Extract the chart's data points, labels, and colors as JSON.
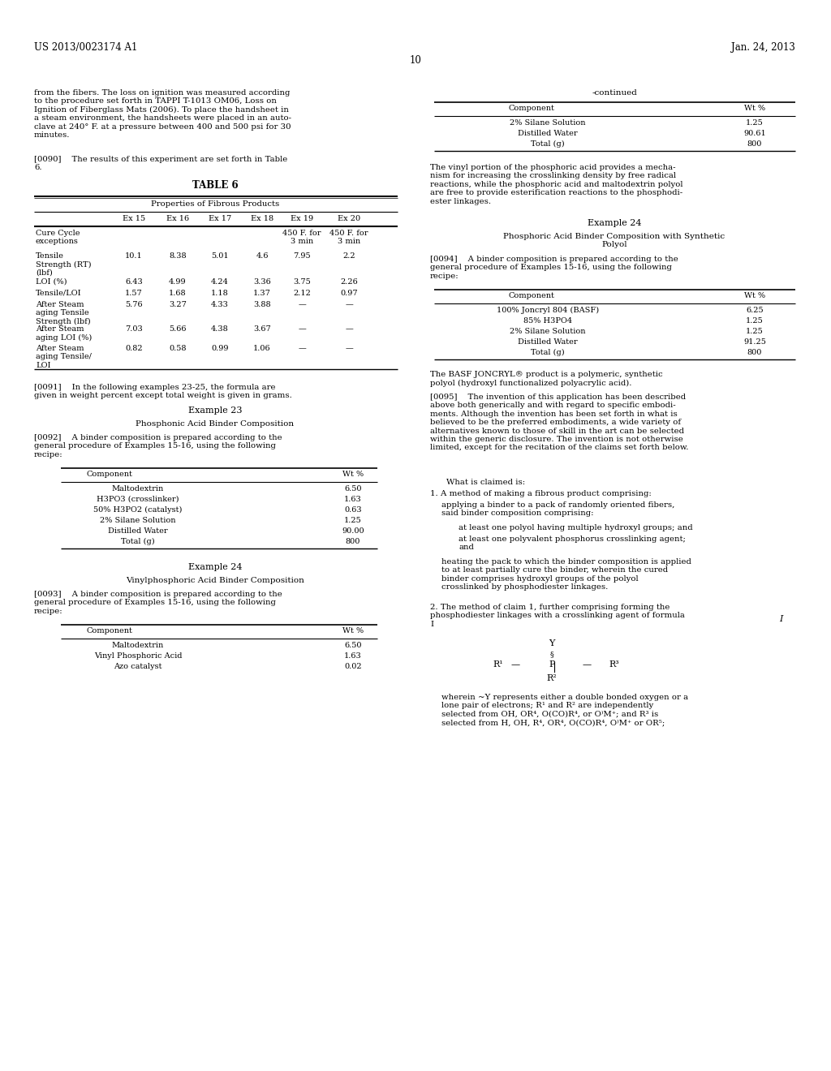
{
  "page_header_left": "US 2013/0023174 A1",
  "page_header_right": "Jan. 24, 2013",
  "page_number": "10",
  "bg_color": "#ffffff",
  "left_top_text": "from the fibers. The loss on ignition was measured according\nto the procedure set forth in TAPPI T-1013 OM06, Loss on\nIgnition of Fiberglass Mats (2006). To place the handsheet in\na steam environment, the handsheets were placed in an auto-\nclave at 240° F. at a pressure between 400 and 500 psi for 30\nminutes.",
  "left_para0090": "[0090]    The results of this experiment are set forth in Table\n6.",
  "table6_title": "TABLE 6",
  "table6_subtitle": "Properties of Fibrous Products",
  "table6_cols": [
    "",
    "Ex 15",
    "Ex 16",
    "Ex 17",
    "Ex 18",
    "Ex 19",
    "Ex 20"
  ],
  "table6_rows": [
    [
      "Cure Cycle\nexceptions",
      "",
      "",
      "",
      "",
      "450 F. for\n3 min",
      "450 F. for\n3 min"
    ],
    [
      "Tensile\nStrength (RT)\n(lbf)",
      "10.1",
      "8.38",
      "5.01",
      "4.6",
      "7.95",
      "2.2"
    ],
    [
      "LOI (%)",
      "6.43",
      "4.99",
      "4.24",
      "3.36",
      "3.75",
      "2.26"
    ],
    [
      "Tensile/LOI",
      "1.57",
      "1.68",
      "1.18",
      "1.37",
      "2.12",
      "0.97"
    ],
    [
      "After Steam\naging Tensile\nStrength (lbf)",
      "5.76",
      "3.27",
      "4.33",
      "3.88",
      "—",
      "—"
    ],
    [
      "After Steam\naging LOI (%)",
      "7.03",
      "5.66",
      "4.38",
      "3.67",
      "—",
      "—"
    ],
    [
      "After Steam\naging Tensile/\nLOI",
      "0.82",
      "0.58",
      "0.99",
      "1.06",
      "—",
      "—"
    ]
  ],
  "left_para0091": "[0091]    In the following examples 23-25, the formula are\ngiven in weight percent except total weight is given in grams.",
  "example23_title": "Example 23",
  "example23_subtitle": "Phosphonic Acid Binder Composition",
  "left_para0092": "[0092]    A binder composition is prepared according to the\ngeneral procedure of Examples 15-16, using the following\nrecipe:",
  "table_ex23_rows": [
    [
      "Maltodextrin",
      "6.50"
    ],
    [
      "H3PO3 (crosslinker)",
      "1.63"
    ],
    [
      "50% H3PO2 (catalyst)",
      "0.63"
    ],
    [
      "2% Silane Solution",
      "1.25"
    ],
    [
      "Distilled Water",
      "90.00"
    ],
    [
      "Total (g)",
      "800"
    ]
  ],
  "example24_title_left": "Example 24",
  "example24_subtitle_left": "Vinylphosphoric Acid Binder Composition",
  "left_para0093": "[0093]    A binder composition is prepared according to the\ngeneral procedure of Examples 15-16, using the following\nrecipe:",
  "table_ex24left_rows": [
    [
      "Maltodextrin",
      "6.50"
    ],
    [
      "Vinyl Phosphoric Acid",
      "1.63"
    ],
    [
      "Azo catalyst",
      "0.02"
    ]
  ],
  "right_continued_label": "-continued",
  "right_continued_rows": [
    [
      "2% Silane Solution",
      "1.25"
    ],
    [
      "Distilled Water",
      "90.61"
    ],
    [
      "Total (g)",
      "800"
    ]
  ],
  "right_para_vinyl": "The vinyl portion of the phosphoric acid provides a mecha-\nnism for increasing the crosslinking density by free radical\nreactions, while the phosphoric acid and maltodextrin polyol\nare free to provide esterification reactions to the phosphodi-\nester linkages.",
  "example24_title_right": "Example 24",
  "example24_subtitle_right": "Phosphoric Acid Binder Composition with Synthetic\nPolyol",
  "right_para0094": "[0094]    A binder composition is prepared according to the\ngeneral procedure of Examples 15-16, using the following\nrecipe:",
  "table_ex24right_rows": [
    [
      "100% Joncryl 804 (BASF)",
      "6.25"
    ],
    [
      "85% H3PO4",
      "1.25"
    ],
    [
      "2% Silane Solution",
      "1.25"
    ],
    [
      "Distilled Water",
      "91.25"
    ],
    [
      "Total (g)",
      "800"
    ]
  ],
  "right_para_basf": "The BASF JONCRYL® product is a polymeric, synthetic\npolyol (hydroxyl functionalized polyacrylic acid).",
  "right_para0095": "[0095]    The invention of this application has been described\nabove both generically and with regard to specific embodi-\nments. Although the invention has been set forth in what is\nbelieved to be the preferred embodiments, a wide variety of\nalternatives known to those of skill in the art can be selected\nwithin the generic disclosure. The invention is not otherwise\nlimited, except for the recitation of the claims set forth below.",
  "claims_intro": "What is claimed is:",
  "claim1_line1": "1. A method of making a fibrous product comprising:",
  "claim1_a": "applying a binder to a pack of randomly oriented fibers,\nsaid binder composition comprising:",
  "claim1_a1": "at least one polyol having multiple hydroxyl groups; and",
  "claim1_a2": "at least one polyvalent phosphorus crosslinking agent;\nand",
  "claim1_b": "heating the pack to which the binder composition is applied\nto at least partially cure the binder, wherein the cured\nbinder comprises hydroxyl groups of the polyol\ncrosslinked by phosphodiester linkages.",
  "claim2": "2. The method of claim 1, further comprising forming the\nphosphodiester linkages with a crosslinking agent of formula\nI",
  "formula_label": "I",
  "claim2_wherein": "wherein ~Y represents either a double bonded oxygen or a\nlone pair of electrons; R¹ and R² are independently\nselected from OH, OR⁴, O(CO)R⁴, or O⁾M⁺; and R³ is\nselected from H, OH, R⁴, OR⁴, O(CO)R⁴, O⁾M⁺ or OR⁵;"
}
